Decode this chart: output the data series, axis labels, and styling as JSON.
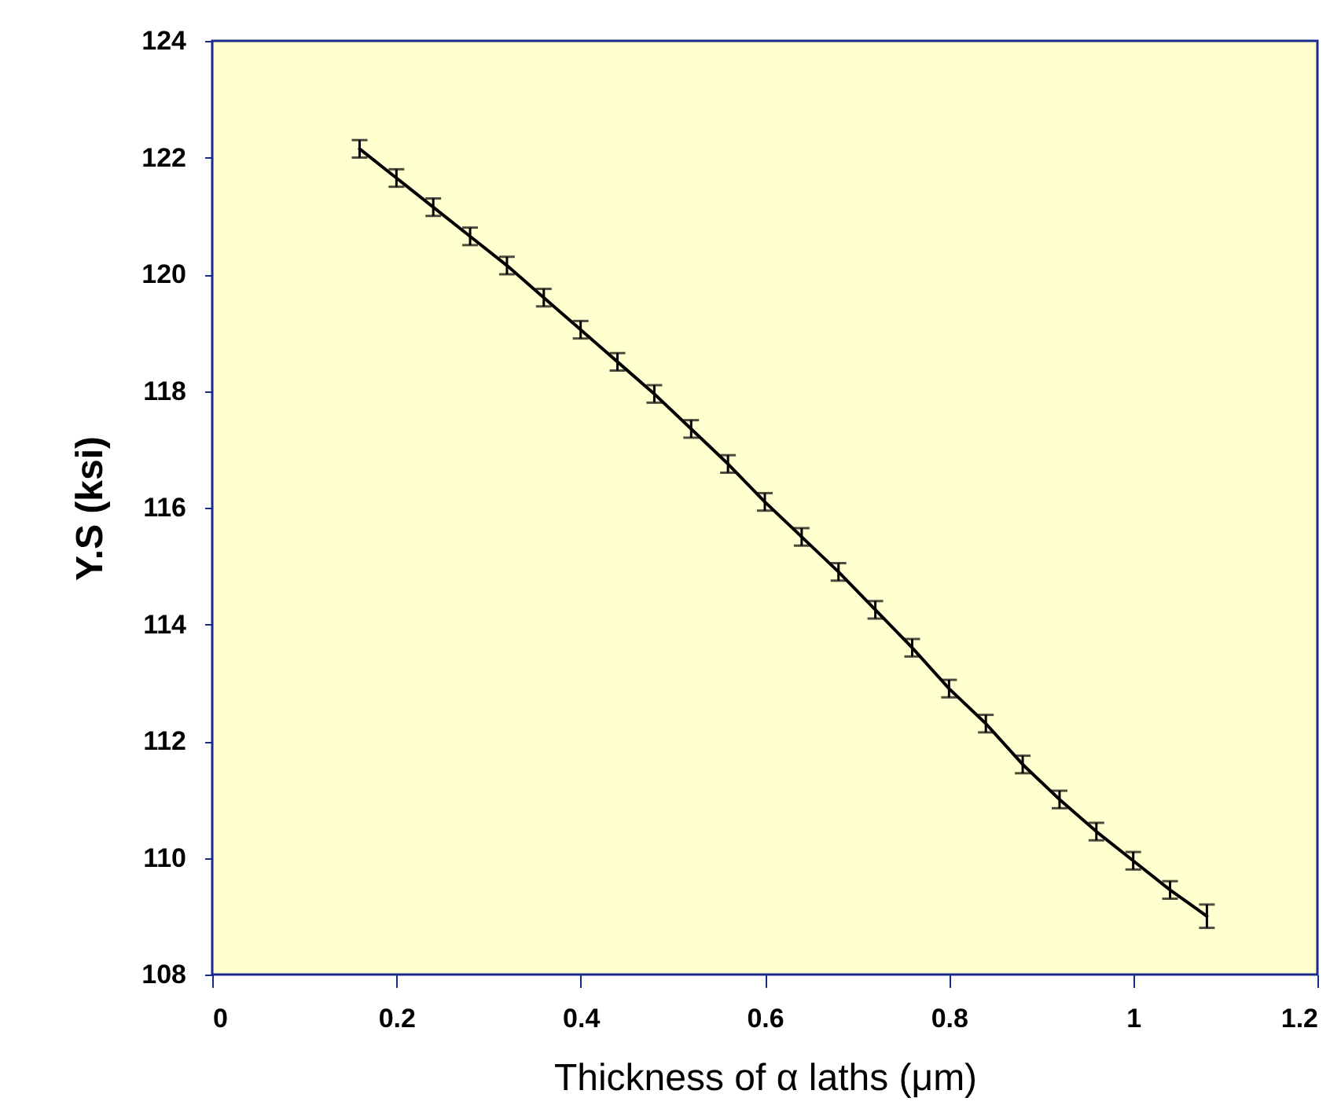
{
  "chart_data": {
    "type": "line",
    "xlabel": "Thickness of α laths (μm)",
    "ylabel": "Y.S (ksi)",
    "xlim": [
      0,
      1.2
    ],
    "xticks": [
      0,
      0.2,
      0.4,
      0.6,
      0.8,
      1,
      1.2
    ],
    "ylim": [
      108,
      124
    ],
    "yticks": [
      108,
      110,
      112,
      114,
      116,
      118,
      120,
      122,
      124
    ],
    "grid": false,
    "marker": "none",
    "line_style": "solid",
    "series": [
      {
        "color": "#000000",
        "x": [
          0.16,
          0.2,
          0.24,
          0.28,
          0.32,
          0.36,
          0.4,
          0.44,
          0.48,
          0.52,
          0.56,
          0.6,
          0.64,
          0.68,
          0.72,
          0.76,
          0.8,
          0.84,
          0.88,
          0.92,
          0.96,
          1.0,
          1.04,
          1.08
        ],
        "values": [
          122.15,
          121.65,
          121.15,
          120.65,
          120.15,
          119.6,
          119.05,
          118.5,
          117.95,
          117.35,
          116.75,
          116.1,
          115.5,
          114.9,
          114.25,
          113.6,
          112.9,
          112.3,
          111.6,
          111.0,
          110.45,
          109.95,
          109.45,
          109.0
        ],
        "errors": [
          0.15,
          0.15,
          0.15,
          0.15,
          0.15,
          0.15,
          0.15,
          0.15,
          0.15,
          0.15,
          0.15,
          0.15,
          0.15,
          0.15,
          0.15,
          0.15,
          0.15,
          0.15,
          0.15,
          0.15,
          0.15,
          0.15,
          0.15,
          0.2
        ]
      }
    ]
  }
}
